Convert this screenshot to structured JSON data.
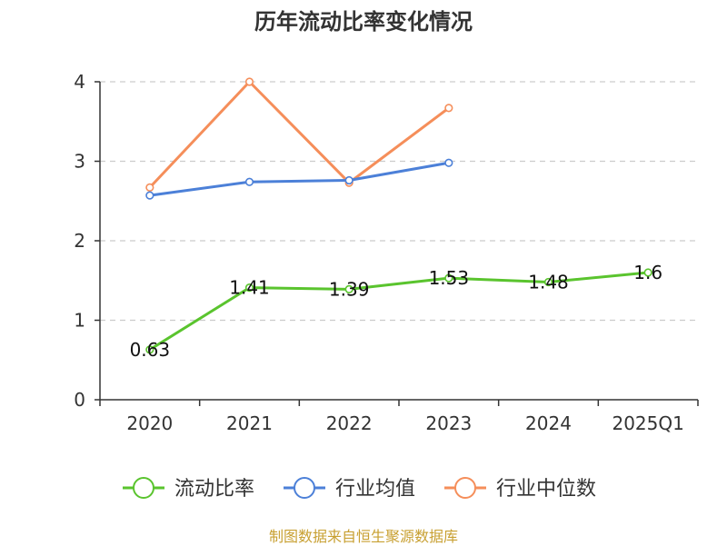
{
  "chart_data": {
    "type": "line",
    "title": "历年流动比率变化情况",
    "categories": [
      "2020",
      "2021",
      "2022",
      "2023",
      "2024",
      "2025Q1"
    ],
    "ylim": [
      0,
      4
    ],
    "yticks": [
      "0",
      "1",
      "2",
      "3",
      "4"
    ],
    "grid": true,
    "series": [
      {
        "name": "流动比率",
        "color": "#5ac42e",
        "values": [
          0.63,
          1.41,
          1.39,
          1.53,
          1.48,
          1.6
        ],
        "labels": [
          "0.63",
          "1.41",
          "1.39",
          "1.53",
          "1.48",
          "1.6"
        ]
      },
      {
        "name": "行业均值",
        "color": "#4c80d8",
        "values": [
          2.57,
          2.74,
          2.76,
          2.98,
          null,
          null
        ]
      },
      {
        "name": "行业中位数",
        "color": "#f58e5a",
        "values": [
          2.67,
          4.0,
          2.73,
          3.67,
          null,
          null
        ]
      }
    ],
    "legend_position": "bottom"
  },
  "footer": "制图数据来自恒生聚源数据库"
}
